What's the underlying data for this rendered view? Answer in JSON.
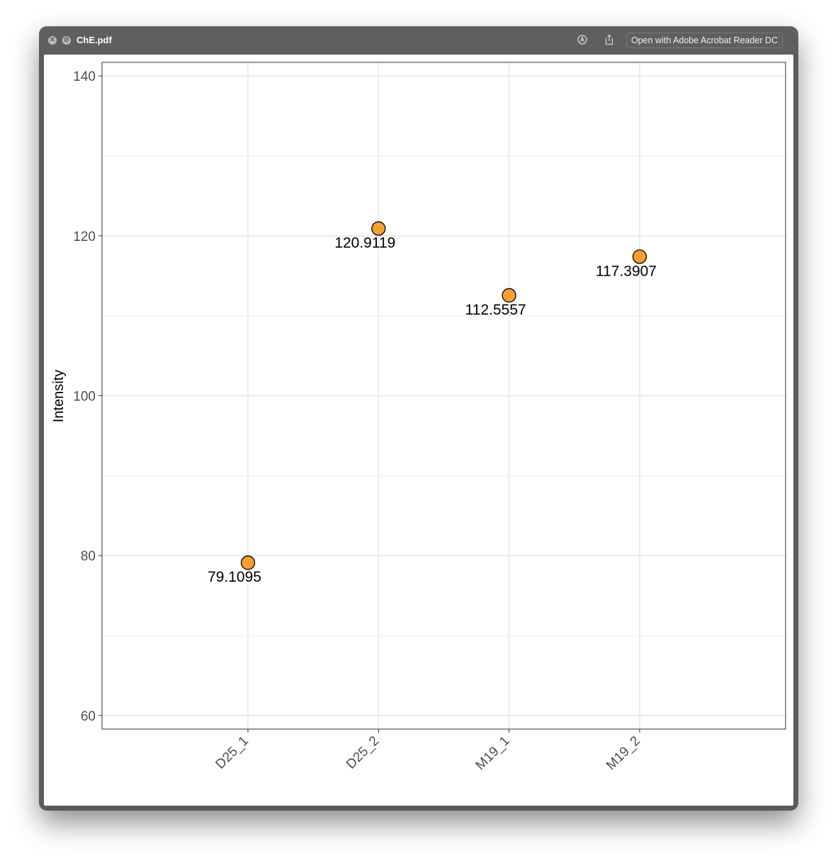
{
  "window": {
    "title": "ChE.pdf",
    "open_button_label": "Open with Adobe Acrobat Reader DC",
    "icons": [
      "close-icon",
      "disabled-icon",
      "markup-icon",
      "share-icon"
    ]
  },
  "chart_data": {
    "type": "scatter",
    "ylabel": "Intensity",
    "xlabel": "",
    "categories": [
      "D25_1",
      "D25_2",
      "M19_1",
      "M19_2"
    ],
    "values": [
      79.1095,
      120.9119,
      112.5557,
      117.3907
    ],
    "data_labels": [
      "79.1095",
      "120.9119",
      "112.5557",
      "117.3907"
    ],
    "ylim": [
      58.3,
      141.7
    ],
    "yticks": [
      60,
      80,
      100,
      120,
      140
    ],
    "ytick_labels": [
      "60",
      "80",
      "100",
      "120",
      "140"
    ],
    "grid": true,
    "point_color": "#f7a030",
    "point_edge_color": "#000000",
    "grid_color": "#ebebeb"
  }
}
